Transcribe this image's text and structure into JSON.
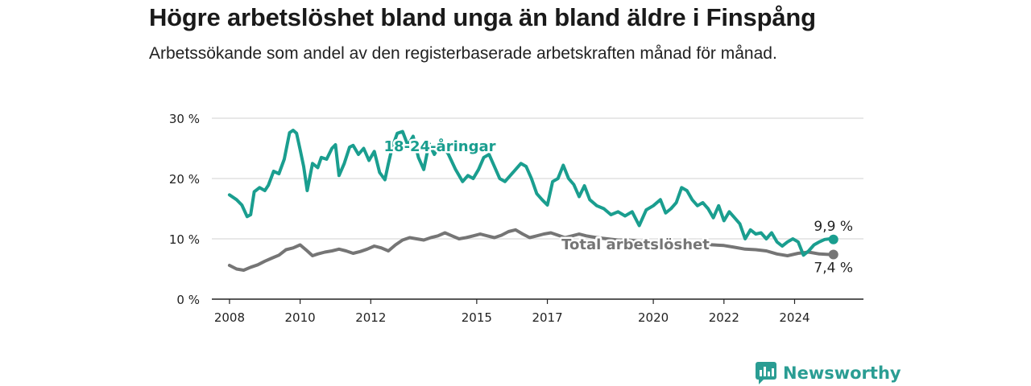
{
  "title": "Högre arbetslöshet bland unga än bland äldre i Finspång",
  "subtitle": "Arbetssökande som andel av den registerbaserade arbetskraften månad för månad.",
  "brand": "Newsworthy",
  "colors": {
    "youth": "#1a9e8f",
    "total": "#757575",
    "grid": "#d9d9d9",
    "axis": "#222222",
    "brand": "#2a9d93"
  },
  "chart_data": {
    "type": "line",
    "title": "Högre arbetslöshet bland unga än bland äldre i Finspång",
    "subtitle": "Arbetssökande som andel av den registerbaserade arbetskraften månad för månad.",
    "ylim": [
      0,
      30
    ],
    "xlim": [
      2007.5,
      2025.95
    ],
    "y_ticks": [
      0,
      10,
      20,
      30
    ],
    "y_tick_labels": [
      "0 %",
      "10 %",
      "20 %",
      "30 %"
    ],
    "x_ticks": [
      2008,
      2010,
      2012,
      2015,
      2017,
      2020,
      2022,
      2024
    ],
    "x_tick_labels": [
      "2008",
      "2010",
      "2012",
      "2015",
      "2017",
      "2020",
      "2022",
      "2024"
    ],
    "grid": "horizontal",
    "series": [
      {
        "name": "18-24-åringar",
        "color": "#1a9e8f",
        "end_label": "9,9 %",
        "x": [
          2008.0,
          2008.2,
          2008.35,
          2008.5,
          2008.6,
          2008.7,
          2008.85,
          2009.0,
          2009.1,
          2009.25,
          2009.4,
          2009.55,
          2009.7,
          2009.8,
          2009.9,
          2010.0,
          2010.1,
          2010.2,
          2010.35,
          2010.5,
          2010.6,
          2010.75,
          2010.9,
          2011.0,
          2011.1,
          2011.25,
          2011.4,
          2011.5,
          2011.65,
          2011.8,
          2011.95,
          2012.1,
          2012.25,
          2012.4,
          2012.5,
          2012.6,
          2012.75,
          2012.9,
          2013.05,
          2013.2,
          2013.35,
          2013.5,
          2013.65,
          2013.8,
          2014.0,
          2014.2,
          2014.4,
          2014.6,
          2014.75,
          2014.9,
          2015.05,
          2015.2,
          2015.35,
          2015.5,
          2015.65,
          2015.8,
          2015.95,
          2016.1,
          2016.25,
          2016.4,
          2016.55,
          2016.7,
          2016.85,
          2017.0,
          2017.15,
          2017.3,
          2017.45,
          2017.6,
          2017.75,
          2017.9,
          2018.05,
          2018.2,
          2018.4,
          2018.6,
          2018.8,
          2019.0,
          2019.2,
          2019.4,
          2019.6,
          2019.8,
          2020.0,
          2020.2,
          2020.35,
          2020.5,
          2020.65,
          2020.8,
          2020.95,
          2021.1,
          2021.25,
          2021.4,
          2021.55,
          2021.7,
          2021.85,
          2022.0,
          2022.15,
          2022.3,
          2022.45,
          2022.6,
          2022.75,
          2022.9,
          2023.05,
          2023.2,
          2023.35,
          2023.5,
          2023.65,
          2023.8,
          2023.95,
          2024.1,
          2024.25,
          2024.4,
          2024.55,
          2024.7,
          2024.85,
          2025.0,
          2025.1
        ],
        "values": [
          17.3,
          16.5,
          15.6,
          13.7,
          14.0,
          17.8,
          18.5,
          18.0,
          18.9,
          21.2,
          20.8,
          23.2,
          27.6,
          28.0,
          27.5,
          24.8,
          22.0,
          18.0,
          22.5,
          21.8,
          23.5,
          23.2,
          25.0,
          25.6,
          20.5,
          22.5,
          25.2,
          25.5,
          24.0,
          25.0,
          23.0,
          24.5,
          21.0,
          19.8,
          22.5,
          25.0,
          27.5,
          27.8,
          25.5,
          27.0,
          23.5,
          21.5,
          25.8,
          24.0,
          26.0,
          24.0,
          21.5,
          19.5,
          20.5,
          20.0,
          21.5,
          23.5,
          24.0,
          22.0,
          20.0,
          19.5,
          20.5,
          21.5,
          22.5,
          22.0,
          20.0,
          17.5,
          16.5,
          15.6,
          19.5,
          20.0,
          22.2,
          20.0,
          19.0,
          17.0,
          18.8,
          16.5,
          15.5,
          15.0,
          14.0,
          14.5,
          13.8,
          14.5,
          12.2,
          14.8,
          15.5,
          16.5,
          14.3,
          15.0,
          16.0,
          18.5,
          18.0,
          16.5,
          15.5,
          16.0,
          15.0,
          13.5,
          15.5,
          13.0,
          14.5,
          13.5,
          12.5,
          10.0,
          11.5,
          10.8,
          11.0,
          10.0,
          11.0,
          9.5,
          8.8,
          9.5,
          10.0,
          9.5,
          7.3,
          8.0,
          9.0,
          9.5,
          9.9,
          10.0,
          9.9
        ]
      },
      {
        "name": "Total arbetslöshet",
        "color": "#757575",
        "end_label": "7,4 %",
        "x": [
          2008.0,
          2008.2,
          2008.4,
          2008.6,
          2008.8,
          2009.0,
          2009.2,
          2009.4,
          2009.6,
          2009.8,
          2010.0,
          2010.2,
          2010.35,
          2010.5,
          2010.7,
          2010.9,
          2011.1,
          2011.3,
          2011.5,
          2011.7,
          2011.9,
          2012.1,
          2012.3,
          2012.5,
          2012.7,
          2012.9,
          2013.1,
          2013.3,
          2013.5,
          2013.7,
          2013.9,
          2014.1,
          2014.3,
          2014.5,
          2014.7,
          2014.9,
          2015.1,
          2015.3,
          2015.5,
          2015.7,
          2015.9,
          2016.1,
          2016.3,
          2016.5,
          2016.7,
          2016.9,
          2017.1,
          2017.3,
          2017.5,
          2017.7,
          2017.9,
          2018.1,
          2018.4,
          2018.7,
          2019.0,
          2019.3,
          2019.6,
          2019.9,
          2020.2,
          2020.5,
          2020.8,
          2021.1,
          2021.4,
          2021.7,
          2022.0,
          2022.3,
          2022.6,
          2022.9,
          2023.2,
          2023.5,
          2023.8,
          2024.1,
          2024.4,
          2024.7,
          2025.0,
          2025.1
        ],
        "values": [
          5.6,
          5.0,
          4.8,
          5.3,
          5.7,
          6.3,
          6.8,
          7.3,
          8.2,
          8.5,
          9.0,
          8.0,
          7.2,
          7.5,
          7.8,
          8.0,
          8.3,
          8.0,
          7.6,
          7.9,
          8.3,
          8.8,
          8.5,
          8.0,
          9.0,
          9.8,
          10.2,
          10.0,
          9.8,
          10.2,
          10.5,
          11.0,
          10.5,
          10.0,
          10.2,
          10.5,
          10.8,
          10.5,
          10.2,
          10.6,
          11.2,
          11.5,
          10.8,
          10.2,
          10.5,
          10.8,
          11.0,
          10.6,
          10.2,
          10.5,
          10.8,
          10.5,
          10.2,
          10.0,
          9.8,
          9.8,
          9.6,
          9.5,
          9.4,
          9.3,
          9.2,
          9.2,
          9.1,
          9.0,
          8.9,
          8.6,
          8.3,
          8.2,
          8.0,
          7.5,
          7.2,
          7.6,
          7.8,
          7.5,
          7.4,
          7.4
        ]
      }
    ]
  }
}
